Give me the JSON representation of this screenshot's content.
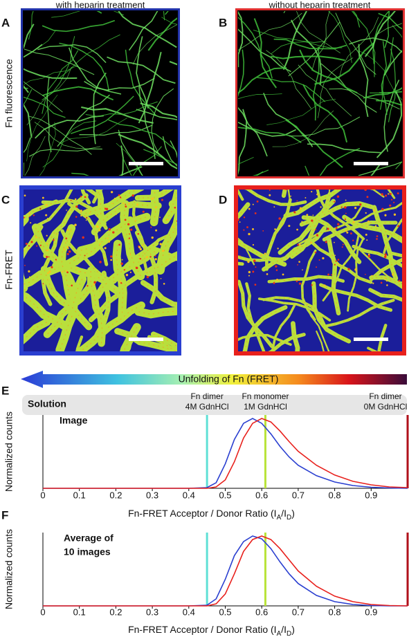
{
  "columns": [
    "with heparin treatment",
    "without heparin treatment"
  ],
  "rows": [
    "Fn fluorescence",
    "Fn-FRET"
  ],
  "panel_labels": [
    "A",
    "B",
    "C",
    "D",
    "E",
    "F"
  ],
  "gradient_label": "Unfolding of Fn (FRET)",
  "chart_data": [
    {
      "type": "line",
      "inset_labels": [
        "Solution",
        "Image"
      ],
      "y_label": "Normalized counts",
      "x_label": [
        "Fn-FRET Acceptor / Donor Ratio (I",
        "A",
        "/I",
        "D",
        ")"
      ],
      "x": [
        0,
        0.4,
        0.45,
        0.475,
        0.5,
        0.525,
        0.55,
        0.575,
        0.6,
        0.625,
        0.65,
        0.675,
        0.7,
        0.75,
        0.8,
        0.85,
        0.9,
        0.95,
        1.0
      ],
      "series": [
        {
          "color": "#2a3fd0",
          "values": [
            0,
            0,
            0.01,
            0.08,
            0.35,
            0.7,
            0.93,
            1.0,
            0.93,
            0.78,
            0.6,
            0.45,
            0.33,
            0.18,
            0.09,
            0.04,
            0.015,
            0.005,
            0
          ]
        },
        {
          "color": "#e8201c",
          "values": [
            0,
            0,
            0,
            0.02,
            0.12,
            0.38,
            0.72,
            0.93,
            1.0,
            0.95,
            0.82,
            0.67,
            0.53,
            0.33,
            0.19,
            0.1,
            0.05,
            0.02,
            0.01
          ]
        }
      ],
      "reference_lines": [
        {
          "x": 0.45,
          "color": "#5fe0d6",
          "label": [
            "Fn dimer",
            "4M GdnHCl"
          ]
        },
        {
          "x": 0.61,
          "color": "#b9e33a",
          "label": [
            "Fn monomer",
            "1M GdnHCl"
          ]
        },
        {
          "x": 1.0,
          "color": "#b0101a",
          "label": [
            "Fn dimer",
            "0M GdnHCl"
          ]
        }
      ],
      "xlim": [
        0,
        1.0
      ],
      "ylim": [
        0,
        1.05
      ],
      "xticks": [
        0,
        0.1,
        0.2,
        0.3,
        0.4,
        0.5,
        0.6,
        0.7,
        0.8,
        0.9
      ]
    },
    {
      "type": "line",
      "inset_labels": [
        "Average of",
        "10 images"
      ],
      "y_label": "Normalized counts",
      "x_label": [
        "Fn-FRET Acceptor / Donor Ratio (I",
        "A",
        "/I",
        "D",
        ")"
      ],
      "x": [
        0,
        0.4,
        0.45,
        0.475,
        0.5,
        0.525,
        0.55,
        0.575,
        0.6,
        0.625,
        0.65,
        0.675,
        0.7,
        0.75,
        0.8,
        0.85,
        0.9,
        0.95,
        1.0
      ],
      "series": [
        {
          "color": "#2a3fd0",
          "values": [
            0,
            0,
            0.01,
            0.1,
            0.38,
            0.72,
            0.92,
            1.0,
            0.96,
            0.82,
            0.63,
            0.46,
            0.32,
            0.15,
            0.06,
            0.02,
            0.005,
            0,
            0
          ]
        },
        {
          "color": "#e8201c",
          "values": [
            0,
            0,
            0,
            0.03,
            0.17,
            0.46,
            0.78,
            0.95,
            1.0,
            0.95,
            0.82,
            0.66,
            0.5,
            0.28,
            0.14,
            0.06,
            0.02,
            0.005,
            0
          ]
        }
      ],
      "reference_lines": [
        {
          "x": 0.45,
          "color": "#5fe0d6"
        },
        {
          "x": 0.61,
          "color": "#b9e33a"
        },
        {
          "x": 1.0,
          "color": "#b0101a"
        }
      ],
      "xlim": [
        0,
        1.0
      ],
      "ylim": [
        0,
        1.05
      ],
      "xticks": [
        0,
        0.1,
        0.2,
        0.3,
        0.4,
        0.5,
        0.6,
        0.7,
        0.8,
        0.9
      ]
    }
  ]
}
